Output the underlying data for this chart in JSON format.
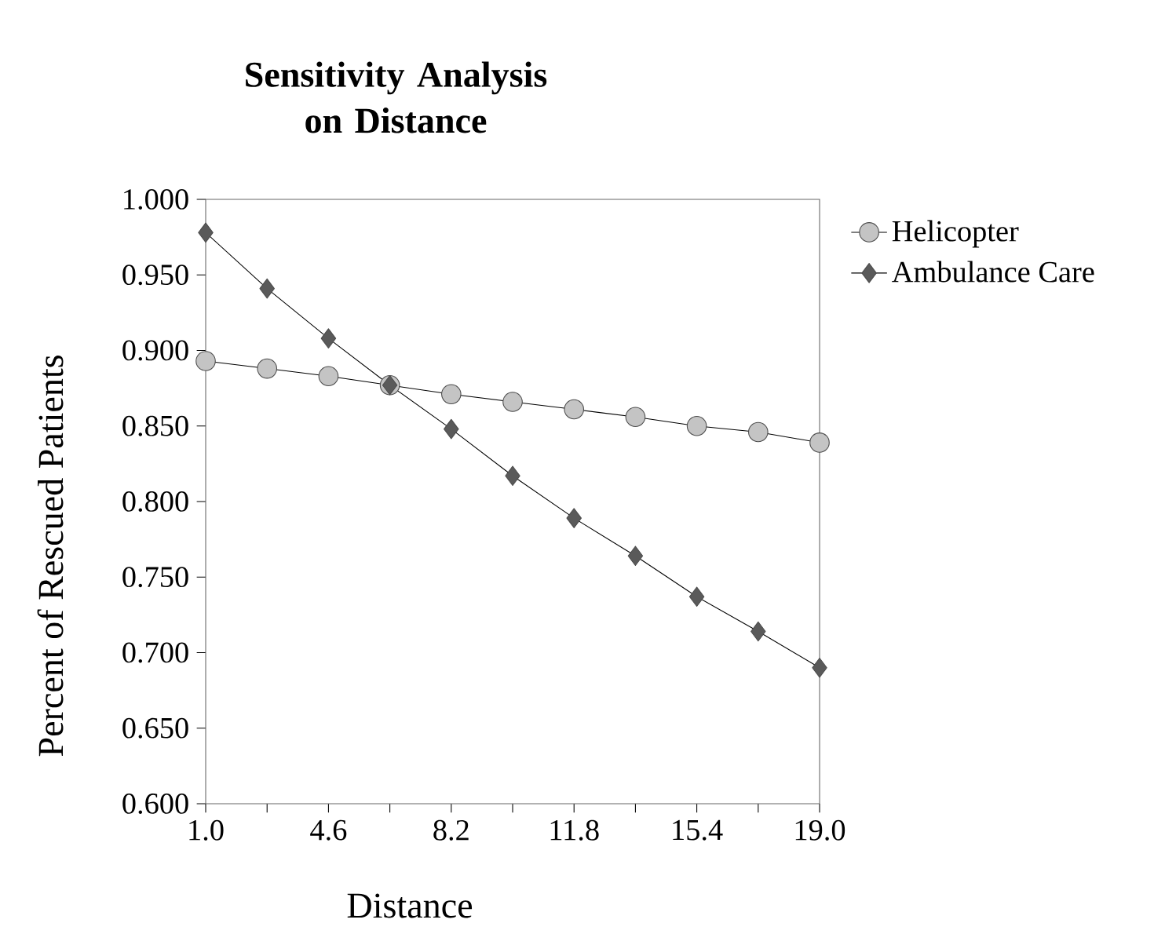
{
  "chart_data": {
    "type": "line",
    "title": "Sensitivity Analysis on Distance",
    "xlabel": "Distance",
    "ylabel": "Percent of Rescued Patients",
    "x": [
      1.0,
      2.8,
      4.6,
      6.4,
      8.2,
      10.0,
      11.8,
      13.6,
      15.4,
      17.2,
      19.0
    ],
    "series": [
      {
        "name": "Helicopter",
        "color": "#c4c4c4",
        "marker": "circle",
        "values": [
          0.893,
          0.888,
          0.883,
          0.877,
          0.871,
          0.866,
          0.861,
          0.856,
          0.85,
          0.846,
          0.839
        ]
      },
      {
        "name": "Ambulance Care",
        "color": "#5a5a5a",
        "marker": "diamond",
        "values": [
          0.978,
          0.941,
          0.908,
          0.877,
          0.848,
          0.817,
          0.789,
          0.764,
          0.737,
          0.714,
          0.69
        ]
      }
    ],
    "xlim": [
      1.0,
      19.0
    ],
    "ylim": [
      0.6,
      1.0
    ],
    "xticks": [
      {
        "value": 1.0,
        "label": "1.0"
      },
      {
        "value": 2.8,
        "label": null
      },
      {
        "value": 4.6,
        "label": "4.6"
      },
      {
        "value": 6.4,
        "label": null
      },
      {
        "value": 8.2,
        "label": "8.2"
      },
      {
        "value": 10.0,
        "label": null
      },
      {
        "value": 11.8,
        "label": "11.8"
      },
      {
        "value": 13.6,
        "label": null
      },
      {
        "value": 15.4,
        "label": "15.4"
      },
      {
        "value": 17.2,
        "label": null
      },
      {
        "value": 19.0,
        "label": "19.0"
      }
    ],
    "yticks": [
      {
        "value": 0.6,
        "label": "0.600"
      },
      {
        "value": 0.65,
        "label": "0.650"
      },
      {
        "value": 0.7,
        "label": "0.700"
      },
      {
        "value": 0.75,
        "label": "0.750"
      },
      {
        "value": 0.8,
        "label": "0.800"
      },
      {
        "value": 0.85,
        "label": "0.850"
      },
      {
        "value": 0.9,
        "label": "0.900"
      },
      {
        "value": 0.95,
        "label": "0.950"
      },
      {
        "value": 1.0,
        "label": "1.000"
      }
    ],
    "legend": "top right",
    "grid": false,
    "line_style": "solid"
  }
}
